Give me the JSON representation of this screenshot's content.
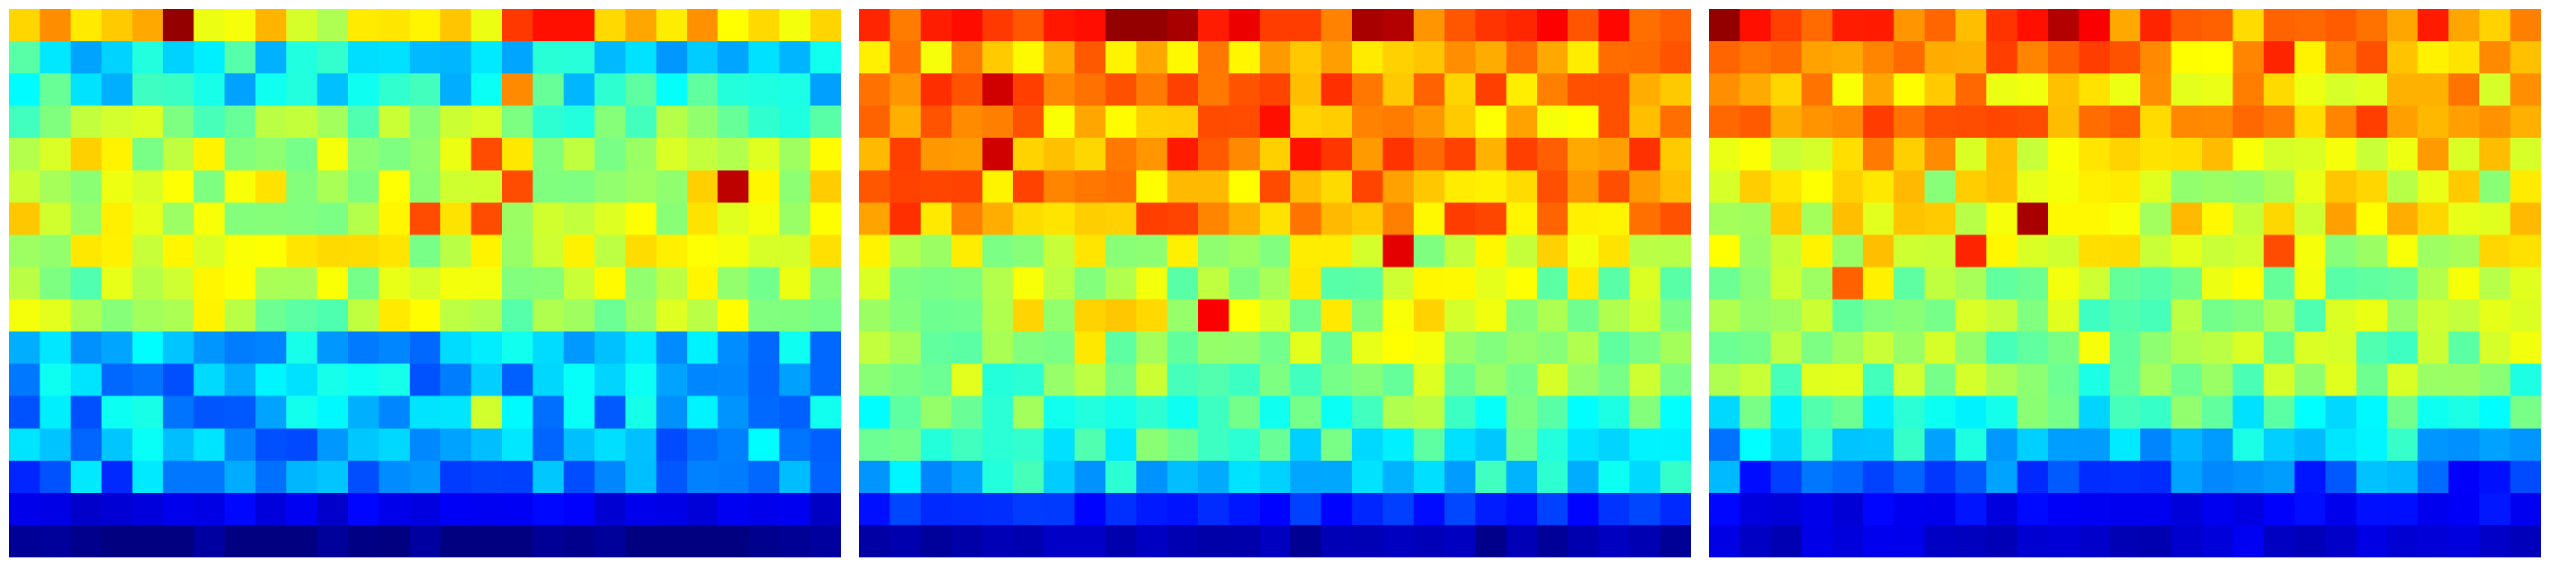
{
  "chart_data": [
    {
      "type": "heatmap",
      "colormap": "jet",
      "value_range": [
        0,
        1
      ],
      "rows": 17,
      "cols": 27,
      "axes_visible": false,
      "row_means": [
        0.64,
        0.37,
        0.38,
        0.5,
        0.58,
        0.58,
        0.59,
        0.57,
        0.55,
        0.55,
        0.3,
        0.3,
        0.3,
        0.29,
        0.26,
        0.1,
        0.0
      ],
      "hot_spots": [
        {
          "row": 0,
          "col": 5,
          "value": 0.98
        },
        {
          "row": 0,
          "col": 17,
          "value": 0.86
        },
        {
          "row": 0,
          "col": 18,
          "value": 0.86
        },
        {
          "row": 0,
          "col": 16,
          "value": 0.82
        },
        {
          "row": 5,
          "col": 23,
          "value": 0.94
        },
        {
          "row": 4,
          "col": 15,
          "value": 0.8
        },
        {
          "row": 5,
          "col": 16,
          "value": 0.8
        },
        {
          "row": 6,
          "col": 13,
          "value": 0.8
        },
        {
          "row": 6,
          "col": 15,
          "value": 0.8
        },
        {
          "row": 2,
          "col": 16,
          "value": 0.74
        },
        {
          "row": 12,
          "col": 15,
          "value": 0.58
        }
      ]
    },
    {
      "type": "heatmap",
      "colormap": "jet",
      "value_range": [
        0,
        1
      ],
      "rows": 17,
      "cols": 27,
      "axes_visible": false,
      "row_means": [
        0.8,
        0.7,
        0.74,
        0.71,
        0.76,
        0.72,
        0.73,
        0.58,
        0.56,
        0.58,
        0.56,
        0.5,
        0.46,
        0.42,
        0.35,
        0.16,
        0.04
      ],
      "hot_spots": [
        {
          "row": 0,
          "col": 8,
          "value": 0.98
        },
        {
          "row": 0,
          "col": 9,
          "value": 0.98
        },
        {
          "row": 0,
          "col": 10,
          "value": 0.96
        },
        {
          "row": 0,
          "col": 16,
          "value": 0.96
        },
        {
          "row": 0,
          "col": 17,
          "value": 0.95
        },
        {
          "row": 2,
          "col": 4,
          "value": 0.92
        },
        {
          "row": 4,
          "col": 4,
          "value": 0.92
        },
        {
          "row": 7,
          "col": 17,
          "value": 0.9
        },
        {
          "row": 9,
          "col": 11,
          "value": 0.88
        },
        {
          "row": 3,
          "col": 13,
          "value": 0.86
        },
        {
          "row": 4,
          "col": 10,
          "value": 0.85
        },
        {
          "row": 14,
          "col": 21,
          "value": 0.3
        }
      ]
    },
    {
      "type": "heatmap",
      "colormap": "jet",
      "value_range": [
        0,
        1
      ],
      "rows": 17,
      "cols": 27,
      "axes_visible": false,
      "row_means": [
        0.76,
        0.72,
        0.68,
        0.74,
        0.66,
        0.6,
        0.63,
        0.6,
        0.55,
        0.52,
        0.52,
        0.5,
        0.43,
        0.33,
        0.22,
        0.12,
        0.08
      ],
      "hot_spots": [
        {
          "row": 0,
          "col": 0,
          "value": 0.98
        },
        {
          "row": 0,
          "col": 1,
          "value": 0.86
        },
        {
          "row": 0,
          "col": 10,
          "value": 0.86
        },
        {
          "row": 0,
          "col": 11,
          "value": 0.95
        },
        {
          "row": 0,
          "col": 12,
          "value": 0.88
        },
        {
          "row": 1,
          "col": 18,
          "value": 0.84
        },
        {
          "row": 6,
          "col": 10,
          "value": 0.96
        },
        {
          "row": 7,
          "col": 8,
          "value": 0.84
        },
        {
          "row": 7,
          "col": 18,
          "value": 0.8
        },
        {
          "row": 8,
          "col": 4,
          "value": 0.78
        }
      ]
    }
  ]
}
